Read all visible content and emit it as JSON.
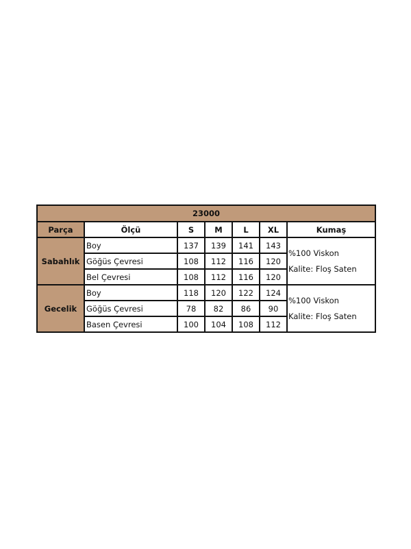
{
  "title": "23000",
  "headers": {
    "part": "Parça",
    "measure": "Ölçü",
    "sizes": [
      "S",
      "M",
      "L",
      "XL"
    ],
    "fabric": "Kumaş"
  },
  "accent_color": "#c09a7a",
  "groups": [
    {
      "part": "Sabahlık",
      "rows": [
        {
          "measure": "Boy",
          "values": [
            "137",
            "139",
            "141",
            "143"
          ]
        },
        {
          "measure": "Göğüs Çevresi",
          "values": [
            "108",
            "112",
            "116",
            "120"
          ]
        },
        {
          "measure": "Bel Çevresi",
          "values": [
            "108",
            "112",
            "116",
            "120"
          ]
        }
      ],
      "fabric": [
        "%100 Viskon",
        "Kalite: Floş Saten"
      ]
    },
    {
      "part": "Gecelik",
      "rows": [
        {
          "measure": "Boy",
          "values": [
            "118",
            "120",
            "122",
            "124"
          ]
        },
        {
          "measure": "Göğüs Çevresi",
          "values": [
            "78",
            "82",
            "86",
            "90"
          ]
        },
        {
          "measure": "Basen Çevresi",
          "values": [
            "100",
            "104",
            "108",
            "112"
          ]
        }
      ],
      "fabric": [
        "%100 Viskon",
        "Kalite: Floş Saten"
      ]
    }
  ]
}
